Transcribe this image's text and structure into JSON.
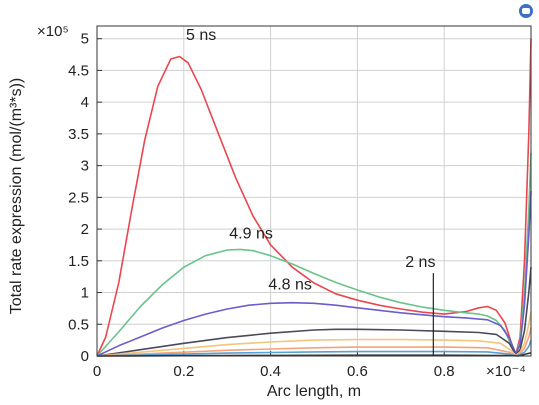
{
  "chart_data": {
    "type": "line",
    "xlabel": "Arc length, m",
    "ylabel": "Total rate expression (mol/(m³*s))",
    "x_multiplier": "×10⁻⁴",
    "y_multiplier": "×10⁵",
    "xlim": [
      0,
      1.0
    ],
    "ylim": [
      0,
      5.2
    ],
    "x_ticks": [
      "0",
      "0.2",
      "0.4",
      "0.6",
      "0.8"
    ],
    "y_ticks": [
      "0",
      "0.5",
      "1",
      "1.5",
      "2",
      "2.5",
      "3",
      "3.5",
      "4",
      "4.5",
      "5"
    ],
    "grid": true,
    "series": [
      {
        "name": "5 ns",
        "color": "#e8474f",
        "x": [
          0,
          0.02,
          0.05,
          0.08,
          0.11,
          0.14,
          0.17,
          0.19,
          0.21,
          0.24,
          0.28,
          0.32,
          0.36,
          0.4,
          0.45,
          0.5,
          0.55,
          0.6,
          0.65,
          0.7,
          0.75,
          0.8,
          0.85,
          0.88,
          0.9,
          0.92,
          0.94,
          0.955,
          0.965,
          0.975,
          0.985,
          0.995,
          1.0
        ],
        "y": [
          0,
          0.3,
          1.15,
          2.3,
          3.4,
          4.25,
          4.68,
          4.72,
          4.62,
          4.2,
          3.5,
          2.8,
          2.2,
          1.75,
          1.4,
          1.15,
          0.98,
          0.88,
          0.8,
          0.74,
          0.69,
          0.66,
          0.7,
          0.76,
          0.78,
          0.72,
          0.52,
          0.2,
          0.02,
          0.3,
          1.5,
          3.5,
          5.0
        ]
      },
      {
        "name": "4.9 ns",
        "color": "#6cc28c",
        "x": [
          0,
          0.05,
          0.1,
          0.15,
          0.2,
          0.25,
          0.3,
          0.33,
          0.36,
          0.4,
          0.45,
          0.5,
          0.55,
          0.6,
          0.65,
          0.7,
          0.75,
          0.8,
          0.85,
          0.88,
          0.9,
          0.92,
          0.94,
          0.955,
          0.965,
          0.975,
          0.985,
          0.995,
          1.0
        ],
        "y": [
          0,
          0.38,
          0.78,
          1.12,
          1.4,
          1.58,
          1.67,
          1.68,
          1.66,
          1.58,
          1.45,
          1.3,
          1.16,
          1.04,
          0.93,
          0.84,
          0.77,
          0.72,
          0.68,
          0.66,
          0.63,
          0.56,
          0.4,
          0.15,
          0.02,
          0.22,
          1.0,
          2.3,
          3.2
        ]
      },
      {
        "name": "4.8 ns",
        "color": "#6a5ecc",
        "x": [
          0,
          0.05,
          0.1,
          0.15,
          0.2,
          0.25,
          0.3,
          0.35,
          0.4,
          0.45,
          0.5,
          0.55,
          0.6,
          0.65,
          0.7,
          0.75,
          0.8,
          0.85,
          0.9,
          0.93,
          0.95,
          0.965,
          0.975,
          0.985,
          0.995,
          1.0
        ],
        "y": [
          0,
          0.16,
          0.3,
          0.44,
          0.56,
          0.66,
          0.74,
          0.8,
          0.83,
          0.84,
          0.83,
          0.8,
          0.76,
          0.72,
          0.68,
          0.65,
          0.62,
          0.6,
          0.57,
          0.48,
          0.28,
          0.04,
          0.18,
          0.8,
          1.9,
          2.6
        ]
      },
      {
        "name": "",
        "color": "#4a4a5c",
        "x": [
          0,
          0.1,
          0.2,
          0.3,
          0.4,
          0.5,
          0.55,
          0.6,
          0.7,
          0.8,
          0.88,
          0.92,
          0.95,
          0.965,
          0.975,
          0.985,
          0.995,
          1.0
        ],
        "y": [
          0,
          0.1,
          0.2,
          0.29,
          0.36,
          0.41,
          0.42,
          0.42,
          0.41,
          0.39,
          0.37,
          0.34,
          0.2,
          0.02,
          0.1,
          0.4,
          1.0,
          1.4
        ]
      },
      {
        "name": "",
        "color": "#f2c57a",
        "x": [
          0,
          0.1,
          0.2,
          0.3,
          0.4,
          0.5,
          0.6,
          0.7,
          0.8,
          0.88,
          0.93,
          0.955,
          0.965,
          0.975,
          0.985,
          0.995,
          1.0
        ],
        "y": [
          0,
          0.06,
          0.12,
          0.18,
          0.22,
          0.25,
          0.26,
          0.26,
          0.25,
          0.24,
          0.2,
          0.08,
          0.01,
          0.06,
          0.2,
          0.5,
          0.7
        ]
      },
      {
        "name": "",
        "color": "#f2a37a",
        "x": [
          0,
          0.1,
          0.2,
          0.3,
          0.4,
          0.5,
          0.6,
          0.7,
          0.8,
          0.9,
          0.95,
          0.965,
          0.975,
          0.985,
          0.995,
          1.0
        ],
        "y": [
          0,
          0.03,
          0.06,
          0.09,
          0.11,
          0.13,
          0.14,
          0.14,
          0.14,
          0.13,
          0.06,
          0.01,
          0.04,
          0.12,
          0.3,
          0.45
        ]
      },
      {
        "name": "",
        "color": "#5aa0d8",
        "x": [
          0,
          0.1,
          0.2,
          0.3,
          0.4,
          0.5,
          0.6,
          0.7,
          0.8,
          0.9,
          0.95,
          0.965,
          0.975,
          0.985,
          0.995,
          1.0
        ],
        "y": [
          0,
          0.015,
          0.03,
          0.045,
          0.055,
          0.065,
          0.07,
          0.07,
          0.07,
          0.065,
          0.03,
          0.005,
          0.02,
          0.06,
          0.15,
          0.25
        ]
      },
      {
        "name": "2 ns",
        "color": "#3a3a3a",
        "x": [
          0,
          0.2,
          0.4,
          0.6,
          0.8,
          0.95,
          0.97,
          1.0
        ],
        "y": [
          0,
          0.005,
          0.01,
          0.012,
          0.012,
          0.008,
          0.0,
          0.05
        ]
      }
    ],
    "annotations": [
      {
        "text": "5 ns",
        "x": 0.24,
        "y": 4.98
      },
      {
        "text": "4.9 ns",
        "x": 0.355,
        "y": 1.85
      },
      {
        "text": "4.8 ns",
        "x": 0.445,
        "y": 1.05
      },
      {
        "text": "2 ns",
        "x": 0.745,
        "y": 1.4,
        "pointer_to": 0.0
      }
    ]
  }
}
